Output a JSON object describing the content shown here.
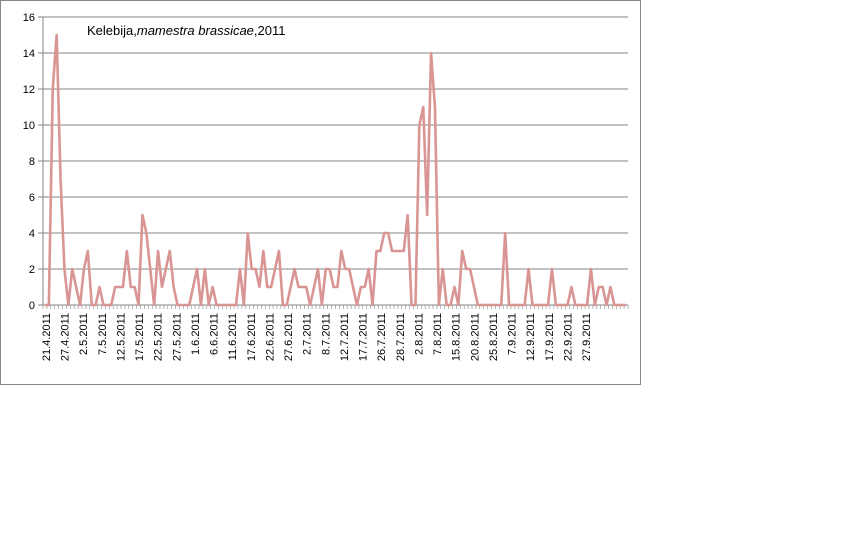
{
  "chart_data": {
    "type": "line",
    "title_prefix": "Kelebija,",
    "title_species": "mamestra brassicae",
    "title_suffix": ",2011",
    "xlabel": "",
    "ylabel": "",
    "ylim": [
      0,
      16
    ],
    "y_ticks": [
      "0",
      "2",
      "4",
      "6",
      "8",
      "10",
      "12",
      "14",
      "16"
    ],
    "grid": "horizontal",
    "legend": "none",
    "line_color": "#d99594",
    "x_tick_labels": [
      "21.4.2011",
      "27.4.2011",
      "2.5.2011",
      "7.5.2011",
      "12.5.2011",
      "17.5.2011",
      "22.5.2011",
      "27.5.2011",
      "1.6.2011",
      "6.6.2011",
      "11.6.2011",
      "17.6.2011",
      "22.6.2011",
      "27.6.2011",
      "2.7.2011",
      "8.7.2011",
      "12.7.2011",
      "17.7.2011",
      "26.7.2011",
      "28.7.2011",
      "2.8.2011",
      "7.8.2011",
      "15.8.2011",
      "20.8.2011",
      "25.8.2011",
      "7.9.2011",
      "12.9.2011",
      "17.9.2011",
      "22.9.2011",
      "27.9.2011"
    ],
    "series": [
      {
        "values": [
          0,
          0,
          12,
          15,
          7,
          2,
          0,
          2,
          1,
          0,
          2,
          3,
          0,
          0,
          1,
          0,
          0,
          0,
          1,
          1,
          1,
          3,
          1,
          1,
          0,
          5,
          4,
          2,
          0,
          3,
          1,
          2,
          3,
          1,
          0,
          0,
          0,
          0,
          1,
          2,
          0,
          2,
          0,
          1,
          0,
          0,
          0,
          0,
          0,
          0,
          2,
          0,
          4,
          2,
          2,
          1,
          3,
          1,
          1,
          2,
          3,
          0,
          0,
          1,
          2,
          1,
          1,
          1,
          0,
          1,
          2,
          0,
          2,
          2,
          1,
          1,
          3,
          2,
          2,
          1,
          0,
          1,
          1,
          2,
          0,
          3,
          3,
          4,
          4,
          3,
          3,
          3,
          3,
          5,
          0,
          0,
          10,
          11,
          5,
          14,
          11,
          0,
          2,
          0,
          0,
          1,
          0,
          3,
          2,
          2,
          1,
          0,
          0,
          0,
          0,
          0,
          0,
          0,
          4,
          0,
          0,
          0,
          0,
          0,
          2,
          0,
          0,
          0,
          0,
          0,
          2,
          0,
          0,
          0,
          0,
          1,
          0,
          0,
          0,
          0,
          2,
          0,
          1,
          1,
          0,
          1,
          0,
          0,
          0,
          0
        ]
      }
    ]
  }
}
